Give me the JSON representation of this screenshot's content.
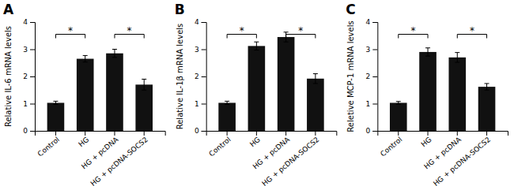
{
  "chart_data": [
    {
      "type": "bar",
      "title": "A",
      "ylabel": "Relative IL-6 mRNA levels",
      "categories": [
        "Control",
        "HG",
        "HG + pcDNA",
        "HG + pcDNA-SOCS2"
      ],
      "values": [
        1.03,
        2.65,
        2.85,
        1.7
      ],
      "errors": [
        0.06,
        0.12,
        0.15,
        0.2
      ],
      "color": "#111111",
      "ylim": [
        0,
        4
      ],
      "yticks": [
        0,
        1,
        2,
        3,
        4
      ],
      "annotations": [
        {
          "text": "*",
          "from": "Control",
          "to": "HG",
          "y": 3.55
        },
        {
          "text": "*",
          "from": "HG + pcDNA",
          "to": "HG + pcDNA-SOCS2",
          "y": 3.55
        }
      ]
    },
    {
      "type": "bar",
      "title": "B",
      "ylabel": "Relative IL-1β mRNA levels",
      "categories": [
        "Control",
        "HG",
        "HG + pcDNA",
        "HG + pcDNA-SOCS2"
      ],
      "values": [
        1.03,
        3.12,
        3.45,
        1.92
      ],
      "errors": [
        0.06,
        0.15,
        0.18,
        0.18
      ],
      "color": "#111111",
      "ylim": [
        0,
        4
      ],
      "yticks": [
        0,
        1,
        2,
        3,
        4
      ],
      "annotations": [
        {
          "text": "*",
          "from": "Control",
          "to": "HG",
          "y": 3.55
        },
        {
          "text": "*",
          "from": "HG + pcDNA",
          "to": "HG + pcDNA-SOCS2",
          "y": 3.55
        }
      ]
    },
    {
      "type": "bar",
      "title": "C",
      "ylabel": "Reletive MCP-1 mRNA levels",
      "categories": [
        "Control",
        "HG",
        "HG + pcDNA",
        "HG + pcDNA-SOCS2"
      ],
      "values": [
        1.03,
        2.9,
        2.7,
        1.62
      ],
      "errors": [
        0.05,
        0.15,
        0.18,
        0.12
      ],
      "color": "#111111",
      "ylim": [
        0,
        4
      ],
      "yticks": [
        0,
        1,
        2,
        3,
        4
      ],
      "annotations": [
        {
          "text": "*",
          "from": "Control",
          "to": "HG",
          "y": 3.55
        },
        {
          "text": "*",
          "from": "HG + pcDNA",
          "to": "HG + pcDNA-SOCS2",
          "y": 3.55
        }
      ]
    }
  ]
}
